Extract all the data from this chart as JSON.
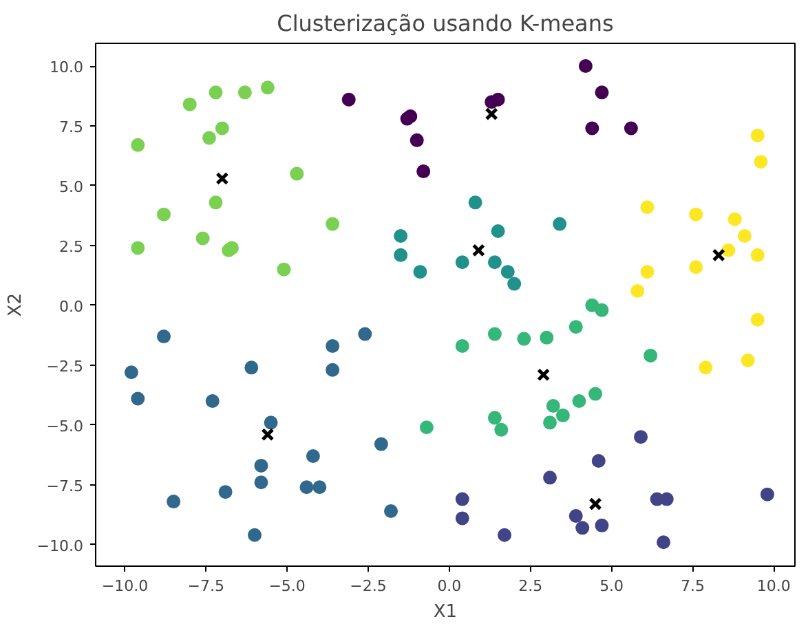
{
  "chart_data": {
    "type": "scatter",
    "title": "Clusterização usando K-means",
    "xlabel": "X1",
    "ylabel": "X2",
    "xlim": [
      -10.9,
      10.65
    ],
    "ylim": [
      -10.9,
      10.95
    ],
    "xticks": [
      {
        "value": -10,
        "label": "−10.0"
      },
      {
        "value": -7.5,
        "label": "−7.5"
      },
      {
        "value": -5,
        "label": "−5.0"
      },
      {
        "value": -2.5,
        "label": "−2.5"
      },
      {
        "value": 0,
        "label": "0.0"
      },
      {
        "value": 2.5,
        "label": "2.5"
      },
      {
        "value": 5,
        "label": "5.0"
      },
      {
        "value": 7.5,
        "label": "7.5"
      },
      {
        "value": 10,
        "label": "10.0"
      }
    ],
    "yticks": [
      {
        "value": -10,
        "label": "−10.0"
      },
      {
        "value": -7.5,
        "label": "−7.5"
      },
      {
        "value": -5,
        "label": "−5.0"
      },
      {
        "value": -2.5,
        "label": "−2.5"
      },
      {
        "value": 0,
        "label": "0.0"
      },
      {
        "value": 2.5,
        "label": "2.5"
      },
      {
        "value": 5,
        "label": "5.0"
      },
      {
        "value": 7.5,
        "label": "7.5"
      },
      {
        "value": 10,
        "label": "10.0"
      }
    ],
    "grid": false,
    "marker": "circle",
    "series": [
      {
        "color": "#440154",
        "x": [
          -3.1,
          -1.3,
          -1.2,
          -1.0,
          -0.8,
          1.3,
          1.5,
          4.2,
          4.4,
          4.7,
          5.6
        ],
        "values": [
          8.6,
          7.8,
          7.9,
          6.9,
          5.6,
          8.5,
          8.6,
          10.0,
          7.4,
          8.9,
          7.4
        ]
      },
      {
        "color": "#fde725",
        "x": [
          9.5,
          9.6,
          6.1,
          7.6,
          8.8,
          9.1,
          8.6,
          9.5,
          7.6,
          6.1,
          5.8,
          9.5,
          7.9,
          9.2
        ],
        "values": [
          7.1,
          6.0,
          4.1,
          3.8,
          3.6,
          2.9,
          2.3,
          2.1,
          1.6,
          1.4,
          0.6,
          -0.6,
          -2.6,
          -2.3
        ]
      },
      {
        "color": "#7ad151",
        "x": [
          -9.6,
          -9.6,
          -8.0,
          -7.2,
          -6.3,
          -5.6,
          -7.0,
          -7.4,
          -4.7,
          -7.2,
          -8.8,
          -7.6,
          -6.8,
          -6.7,
          -5.1,
          -3.6
        ],
        "values": [
          6.7,
          2.4,
          8.4,
          8.9,
          8.9,
          9.1,
          7.4,
          7.0,
          5.5,
          4.3,
          3.8,
          2.8,
          2.3,
          2.4,
          1.5,
          3.4
        ]
      },
      {
        "color": "#21918c",
        "x": [
          0.8,
          -1.5,
          -1.5,
          -0.9,
          1.5,
          3.4,
          0.4,
          1.4,
          1.8,
          2.0
        ],
        "values": [
          4.3,
          2.9,
          2.1,
          1.4,
          3.1,
          3.4,
          1.8,
          1.8,
          1.4,
          0.9
        ]
      },
      {
        "color": "#35b779",
        "x": [
          0.4,
          1.4,
          2.3,
          3.0,
          3.9,
          4.4,
          4.7,
          6.2,
          1.4,
          1.6,
          3.1,
          3.2,
          3.5,
          4.0,
          4.5,
          -0.7
        ],
        "values": [
          -1.7,
          -1.2,
          -1.4,
          -1.35,
          -0.9,
          0.0,
          -0.2,
          -2.1,
          -4.7,
          -5.2,
          -4.9,
          -4.2,
          -4.6,
          -4.0,
          -3.7,
          -5.1
        ]
      },
      {
        "color": "#31688e",
        "x": [
          -9.8,
          -9.6,
          -8.8,
          -7.3,
          -6.1,
          -8.5,
          -6.9,
          -6.0,
          -5.8,
          -5.8,
          -5.5,
          -4.4,
          -4.2,
          -4.0,
          -3.6,
          -3.6,
          -2.6,
          -2.1,
          -1.8
        ],
        "values": [
          -2.8,
          -3.9,
          -1.3,
          -4.0,
          -2.6,
          -8.2,
          -7.8,
          -9.6,
          -6.7,
          -7.4,
          -4.9,
          -7.6,
          -6.3,
          -7.6,
          -1.7,
          -2.7,
          -1.2,
          -5.8,
          -8.6
        ]
      },
      {
        "color": "#414487",
        "x": [
          0.4,
          0.4,
          1.7,
          3.1,
          3.9,
          4.1,
          4.6,
          4.7,
          5.9,
          6.4,
          6.7,
          6.6,
          9.8
        ],
        "values": [
          -8.1,
          -8.9,
          -9.6,
          -7.2,
          -8.8,
          -9.3,
          -6.5,
          -9.2,
          -5.5,
          -8.1,
          -8.1,
          -9.9,
          -7.9
        ]
      },
      {
        "color": "#000000",
        "marker": "cross",
        "x": [
          -7.0,
          1.3,
          0.9,
          8.3,
          -5.6,
          2.9,
          4.5
        ],
        "values": [
          5.3,
          8.0,
          2.3,
          2.1,
          -5.4,
          -2.9,
          -8.3
        ]
      }
    ]
  }
}
